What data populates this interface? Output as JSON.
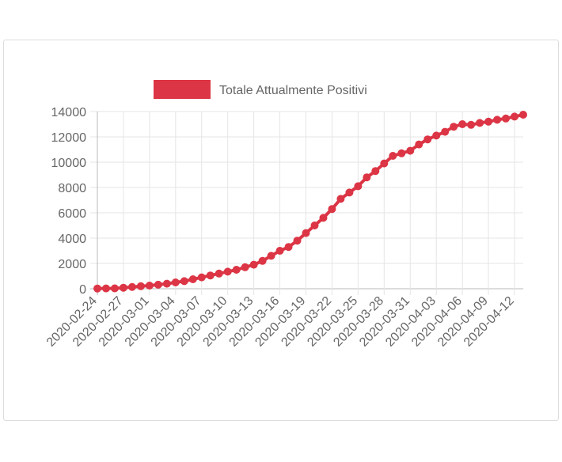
{
  "chart_data": {
    "type": "line",
    "categories": [
      "2020-02-24",
      null,
      null,
      "2020-02-27",
      null,
      null,
      "2020-03-01",
      null,
      null,
      "2020-03-04",
      null,
      null,
      "2020-03-07",
      null,
      null,
      "2020-03-10",
      null,
      null,
      "2020-03-13",
      null,
      null,
      "2020-03-16",
      null,
      null,
      "2020-03-19",
      null,
      null,
      "2020-03-22",
      null,
      null,
      "2020-03-25",
      null,
      null,
      "2020-03-28",
      null,
      null,
      "2020-03-31",
      null,
      null,
      "2020-04-03",
      null,
      null,
      "2020-04-06",
      null,
      null,
      "2020-04-09",
      null,
      null,
      "2020-04-12",
      null
    ],
    "series": [
      {
        "name": "Totale Attualmente Positivi",
        "color": "#dc3545",
        "values": [
          18,
          23,
          30,
          80,
          140,
          200,
          250,
          320,
          400,
          500,
          600,
          750,
          900,
          1050,
          1200,
          1350,
          1500,
          1700,
          1900,
          2200,
          2600,
          3000,
          3300,
          3800,
          4400,
          5000,
          5600,
          6300,
          7100,
          7600,
          8100,
          8800,
          9300,
          9900,
          10500,
          10700,
          10900,
          11400,
          11800,
          12100,
          12400,
          12800,
          13000,
          12950,
          13100,
          13200,
          13350,
          13450,
          13600,
          13750
        ]
      }
    ],
    "ylim": [
      0,
      14000
    ],
    "yticks": [
      0,
      2000,
      4000,
      6000,
      8000,
      10000,
      12000,
      14000
    ],
    "grid": true,
    "legend": "top"
  }
}
